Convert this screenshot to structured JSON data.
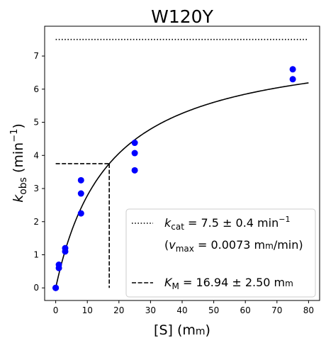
{
  "chart_data": {
    "type": "scatter",
    "title": "W120Y",
    "xlabel": {
      "main": "[S] (m",
      "unit_smallcaps": "m",
      "close": ")"
    },
    "ylabel": {
      "k": "k",
      "sub": "obs",
      "unit": "(min",
      "sup": "−1",
      "close": ")"
    },
    "xlim": [
      -3.5,
      83.5
    ],
    "ylim": [
      -0.38,
      7.9
    ],
    "xticks": [
      0,
      10,
      20,
      30,
      40,
      50,
      60,
      70,
      80
    ],
    "yticks": [
      0,
      1,
      2,
      3,
      4,
      5,
      6,
      7
    ],
    "scatter_color": "#0000ff",
    "points": [
      {
        "x": 0,
        "y": 0.0
      },
      {
        "x": 0,
        "y": 0.0
      },
      {
        "x": 0,
        "y": 0.0
      },
      {
        "x": 1,
        "y": 0.6
      },
      {
        "x": 1,
        "y": 0.7
      },
      {
        "x": 3,
        "y": 1.1
      },
      {
        "x": 3,
        "y": 1.2
      },
      {
        "x": 8,
        "y": 2.25
      },
      {
        "x": 8,
        "y": 2.85
      },
      {
        "x": 8,
        "y": 3.25
      },
      {
        "x": 25,
        "y": 3.55
      },
      {
        "x": 25,
        "y": 4.07
      },
      {
        "x": 25,
        "y": 4.38
      },
      {
        "x": 75,
        "y": 6.3
      },
      {
        "x": 75,
        "y": 6.6
      }
    ],
    "fit": {
      "kcat": 7.5,
      "KM": 16.94,
      "x_end": 80
    },
    "kcat_line": {
      "y": 7.5,
      "x_start": 0,
      "x_end": 80
    },
    "km_lines": {
      "x": 16.94,
      "y": 3.75,
      "x_start": 0
    },
    "legend": {
      "position": "lower-right",
      "kcat": {
        "k": "k",
        "sub": "cat",
        "text": " = 7.5 ± 0.4 min",
        "sup": "−1"
      },
      "vmax": {
        "open": "(",
        "v": "v",
        "sub": "max",
        "text": " = 0.0073 m",
        "sc": "m",
        "tail": "/min)"
      },
      "km": {
        "k": "K",
        "sub": "M",
        "text": " = 16.94 ± 2.50 m",
        "sc": "m"
      }
    }
  }
}
